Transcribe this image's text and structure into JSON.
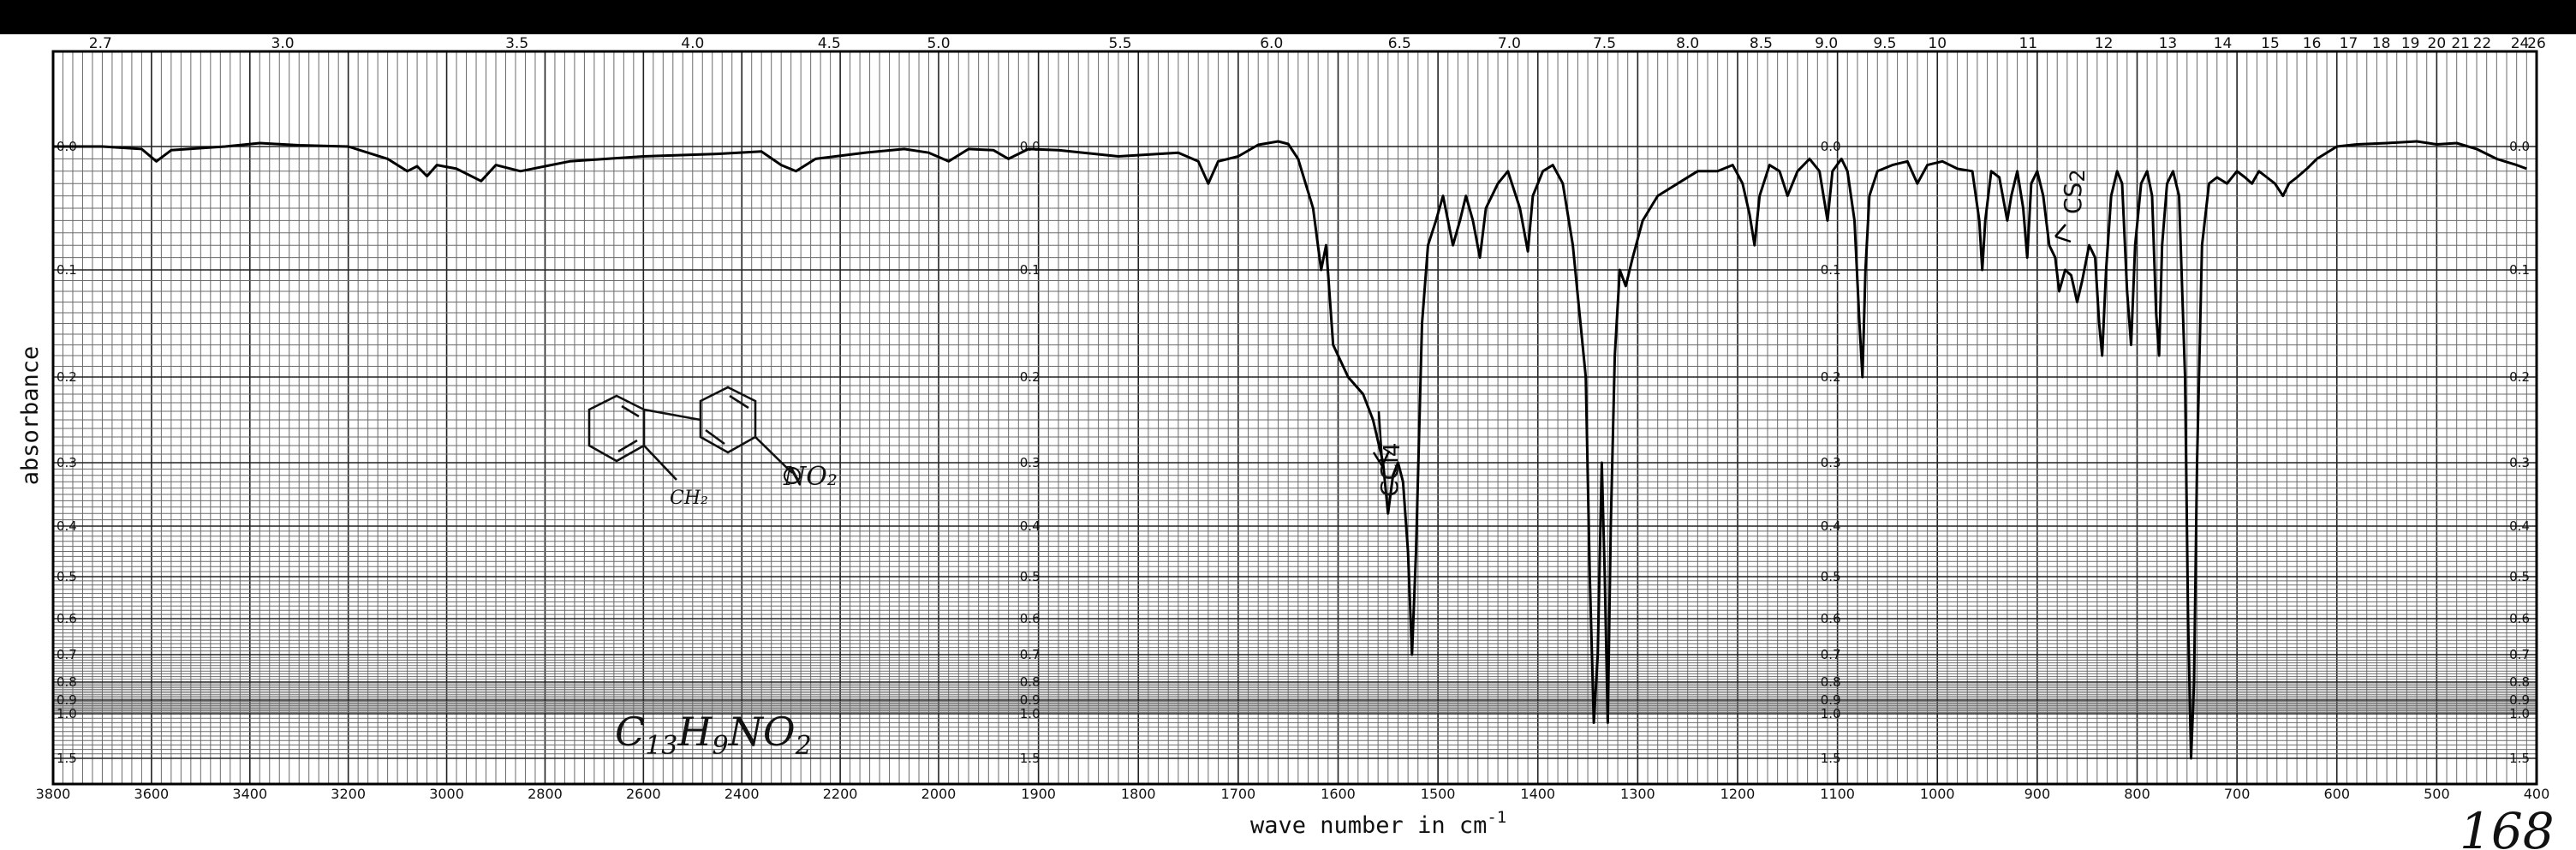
{
  "chart_data": {
    "type": "line",
    "title": "",
    "xlabel": "wave number in cm",
    "xlabel_exponent": "-1",
    "ylabel": "absorbance",
    "x_axis": {
      "ticks": [
        3800,
        3600,
        3400,
        3200,
        3000,
        2800,
        2600,
        2400,
        2200,
        2000,
        1900,
        1800,
        1700,
        1600,
        1500,
        1400,
        1300,
        1200,
        1100,
        1000,
        900,
        800,
        700,
        600,
        500,
        400
      ]
    },
    "wavelength_axis": {
      "ticks": [
        {
          "um": 2.7,
          "label": "2.7"
        },
        {
          "um": 3.0,
          "label": "3.0"
        },
        {
          "um": 3.5,
          "label": "3.5"
        },
        {
          "um": 4.0,
          "label": "4.0"
        },
        {
          "um": 4.5,
          "label": "4.5"
        },
        {
          "um": 5.0,
          "label": "5.0"
        },
        {
          "um": 5.5,
          "label": "5.5"
        },
        {
          "um": 6.0,
          "label": "6.0"
        },
        {
          "um": 6.5,
          "label": "6.5"
        },
        {
          "um": 7.0,
          "label": "7.0"
        },
        {
          "um": 7.5,
          "label": "7.5"
        },
        {
          "um": 8.0,
          "label": "8.0"
        },
        {
          "um": 8.5,
          "label": "8.5"
        },
        {
          "um": 9.0,
          "label": "9.0"
        },
        {
          "um": 9.5,
          "label": "9.5"
        },
        {
          "um": 10,
          "label": "10"
        },
        {
          "um": 11,
          "label": "11"
        },
        {
          "um": 12,
          "label": "12"
        },
        {
          "um": 13,
          "label": "13"
        },
        {
          "um": 14,
          "label": "14"
        },
        {
          "um": 15,
          "label": "15"
        },
        {
          "um": 16,
          "label": "16"
        },
        {
          "um": 17,
          "label": "17"
        },
        {
          "um": 18,
          "label": "18"
        },
        {
          "um": 19,
          "label": "19"
        },
        {
          "um": 20,
          "label": "20"
        },
        {
          "um": 21,
          "label": "21"
        },
        {
          "um": 22,
          "label": "22"
        },
        {
          "um": 24,
          "label": "24"
        },
        {
          "um": 26,
          "label": "26"
        }
      ]
    },
    "y_axis": {
      "scale": "absorbance",
      "range": [
        0,
        1.5
      ],
      "ticks": [
        {
          "value": 0.0,
          "label": "0.0"
        },
        {
          "value": 0.1,
          "label": "0.1"
        },
        {
          "value": 0.2,
          "label": "0.2"
        },
        {
          "value": 0.3,
          "label": "0.3"
        },
        {
          "value": 0.4,
          "label": "0.4"
        },
        {
          "value": 0.5,
          "label": "0.5"
        },
        {
          "value": 0.6,
          "label": "0.6"
        },
        {
          "value": 0.7,
          "label": "0.7"
        },
        {
          "value": 0.8,
          "label": "0.8"
        },
        {
          "value": 0.9,
          "label": "0.9"
        },
        {
          "value": 1.0,
          "label": "1.0"
        },
        {
          "value": 1.5,
          "label": "1.5"
        }
      ]
    },
    "series": [
      {
        "points": [
          [
            3800,
            0.0
          ],
          [
            3700,
            0.0
          ],
          [
            3620,
            0.002
          ],
          [
            3590,
            0.012
          ],
          [
            3560,
            0.003
          ],
          [
            3450,
            0.0
          ],
          [
            3380,
            -0.008
          ],
          [
            3300,
            -0.003
          ],
          [
            3200,
            0.0
          ],
          [
            3120,
            0.01
          ],
          [
            3080,
            0.02
          ],
          [
            3060,
            0.016
          ],
          [
            3040,
            0.024
          ],
          [
            3020,
            0.015
          ],
          [
            2980,
            0.018
          ],
          [
            2930,
            0.028
          ],
          [
            2900,
            0.015
          ],
          [
            2850,
            0.02
          ],
          [
            2750,
            0.012
          ],
          [
            2600,
            0.008
          ],
          [
            2450,
            0.006
          ],
          [
            2360,
            0.004
          ],
          [
            2320,
            0.015
          ],
          [
            2290,
            0.02
          ],
          [
            2250,
            0.01
          ],
          [
            2150,
            0.005
          ],
          [
            2070,
            0.002
          ],
          [
            2020,
            0.005
          ],
          [
            1990,
            0.012
          ],
          [
            1970,
            0.002
          ],
          [
            1945,
            0.003
          ],
          [
            1930,
            0.01
          ],
          [
            1910,
            0.002
          ],
          [
            1880,
            0.003
          ],
          [
            1820,
            0.008
          ],
          [
            1760,
            0.005
          ],
          [
            1740,
            0.012
          ],
          [
            1730,
            0.03
          ],
          [
            1720,
            0.012
          ],
          [
            1700,
            0.008
          ],
          [
            1680,
            -0.004
          ],
          [
            1660,
            -0.012
          ],
          [
            1650,
            -0.006
          ],
          [
            1640,
            0.01
          ],
          [
            1625,
            0.05
          ],
          [
            1617,
            0.1
          ],
          [
            1612,
            0.08
          ],
          [
            1605,
            0.17
          ],
          [
            1590,
            0.2
          ],
          [
            1575,
            0.22
          ],
          [
            1565,
            0.25
          ],
          [
            1555,
            0.3
          ],
          [
            1550,
            0.38
          ],
          [
            1545,
            0.32
          ],
          [
            1540,
            0.3
          ],
          [
            1535,
            0.33
          ],
          [
            1530,
            0.45
          ],
          [
            1526,
            0.7
          ],
          [
            1522,
            0.45
          ],
          [
            1516,
            0.15
          ],
          [
            1510,
            0.08
          ],
          [
            1502,
            0.06
          ],
          [
            1495,
            0.04
          ],
          [
            1485,
            0.08
          ],
          [
            1478,
            0.06
          ],
          [
            1472,
            0.04
          ],
          [
            1465,
            0.06
          ],
          [
            1458,
            0.09
          ],
          [
            1452,
            0.05
          ],
          [
            1440,
            0.03
          ],
          [
            1430,
            0.02
          ],
          [
            1418,
            0.05
          ],
          [
            1410,
            0.085
          ],
          [
            1405,
            0.04
          ],
          [
            1395,
            0.02
          ],
          [
            1385,
            0.015
          ],
          [
            1375,
            0.03
          ],
          [
            1365,
            0.08
          ],
          [
            1352,
            0.2
          ],
          [
            1348,
            0.5
          ],
          [
            1344,
            1.1
          ],
          [
            1340,
            0.7
          ],
          [
            1336,
            0.3
          ],
          [
            1333,
            0.5
          ],
          [
            1330,
            1.1
          ],
          [
            1327,
            0.4
          ],
          [
            1323,
            0.18
          ],
          [
            1318,
            0.1
          ],
          [
            1312,
            0.115
          ],
          [
            1305,
            0.09
          ],
          [
            1295,
            0.06
          ],
          [
            1280,
            0.04
          ],
          [
            1260,
            0.03
          ],
          [
            1240,
            0.02
          ],
          [
            1220,
            0.02
          ],
          [
            1205,
            0.015
          ],
          [
            1195,
            0.03
          ],
          [
            1188,
            0.055
          ],
          [
            1183,
            0.08
          ],
          [
            1178,
            0.04
          ],
          [
            1168,
            0.015
          ],
          [
            1158,
            0.02
          ],
          [
            1150,
            0.04
          ],
          [
            1140,
            0.02
          ],
          [
            1128,
            0.01
          ],
          [
            1118,
            0.02
          ],
          [
            1110,
            0.06
          ],
          [
            1105,
            0.02
          ],
          [
            1096,
            0.01
          ],
          [
            1090,
            0.02
          ],
          [
            1083,
            0.06
          ],
          [
            1078,
            0.15
          ],
          [
            1075,
            0.2
          ],
          [
            1072,
            0.1
          ],
          [
            1068,
            0.04
          ],
          [
            1060,
            0.02
          ],
          [
            1045,
            0.015
          ],
          [
            1030,
            0.012
          ],
          [
            1020,
            0.03
          ],
          [
            1010,
            0.015
          ],
          [
            995,
            0.012
          ],
          [
            980,
            0.018
          ],
          [
            965,
            0.02
          ],
          [
            958,
            0.06
          ],
          [
            955,
            0.1
          ],
          [
            952,
            0.06
          ],
          [
            946,
            0.02
          ],
          [
            938,
            0.025
          ],
          [
            930,
            0.06
          ],
          [
            926,
            0.04
          ],
          [
            920,
            0.02
          ],
          [
            914,
            0.05
          ],
          [
            910,
            0.09
          ],
          [
            906,
            0.03
          ],
          [
            900,
            0.02
          ],
          [
            894,
            0.04
          ],
          [
            888,
            0.08
          ],
          [
            882,
            0.09
          ],
          [
            878,
            0.12
          ],
          [
            872,
            0.1
          ],
          [
            866,
            0.105
          ],
          [
            860,
            0.13
          ],
          [
            855,
            0.11
          ],
          [
            848,
            0.08
          ],
          [
            842,
            0.09
          ],
          [
            838,
            0.15
          ],
          [
            835,
            0.18
          ],
          [
            831,
            0.1
          ],
          [
            826,
            0.04
          ],
          [
            820,
            0.02
          ],
          [
            815,
            0.03
          ],
          [
            810,
            0.12
          ],
          [
            806,
            0.17
          ],
          [
            802,
            0.08
          ],
          [
            796,
            0.03
          ],
          [
            790,
            0.02
          ],
          [
            785,
            0.04
          ],
          [
            781,
            0.14
          ],
          [
            778,
            0.18
          ],
          [
            775,
            0.08
          ],
          [
            770,
            0.03
          ],
          [
            764,
            0.02
          ],
          [
            758,
            0.04
          ],
          [
            752,
            0.2
          ],
          [
            749,
            0.6
          ],
          [
            746,
            1.5
          ],
          [
            743,
            0.8
          ],
          [
            740,
            0.3
          ],
          [
            735,
            0.08
          ],
          [
            728,
            0.03
          ],
          [
            720,
            0.025
          ],
          [
            710,
            0.03
          ],
          [
            700,
            0.02
          ],
          [
            692,
            0.025
          ],
          [
            685,
            0.03
          ],
          [
            678,
            0.02
          ],
          [
            670,
            0.025
          ],
          [
            662,
            0.03
          ],
          [
            654,
            0.04
          ],
          [
            648,
            0.03
          ],
          [
            640,
            0.025
          ],
          [
            630,
            0.018
          ],
          [
            620,
            0.01
          ],
          [
            600,
            0.0
          ],
          [
            580,
            -0.005
          ],
          [
            550,
            -0.008
          ],
          [
            520,
            -0.012
          ],
          [
            500,
            -0.005
          ],
          [
            480,
            -0.008
          ],
          [
            460,
            0.002
          ],
          [
            440,
            0.01
          ],
          [
            420,
            0.015
          ],
          [
            410,
            0.018
          ]
        ]
      }
    ],
    "annotations": [
      {
        "text": "CCl",
        "subscript": "4",
        "wavenumber": 1552,
        "absorbance": 0.3,
        "arrow": true
      },
      {
        "text": "CS",
        "subscript": "2",
        "wavenumber": 855,
        "absorbance": 0.06,
        "arrow": true
      }
    ],
    "grid": true,
    "legend": "none"
  },
  "handwritten": {
    "formula": {
      "C": "C",
      "C_sub": "13",
      "H": "H",
      "H_sub": "9",
      "N": "NO",
      "O_sub": "2"
    },
    "structure_labels": {
      "left": "CH₂",
      "right": "NO₂"
    },
    "corner_mark": "168"
  }
}
